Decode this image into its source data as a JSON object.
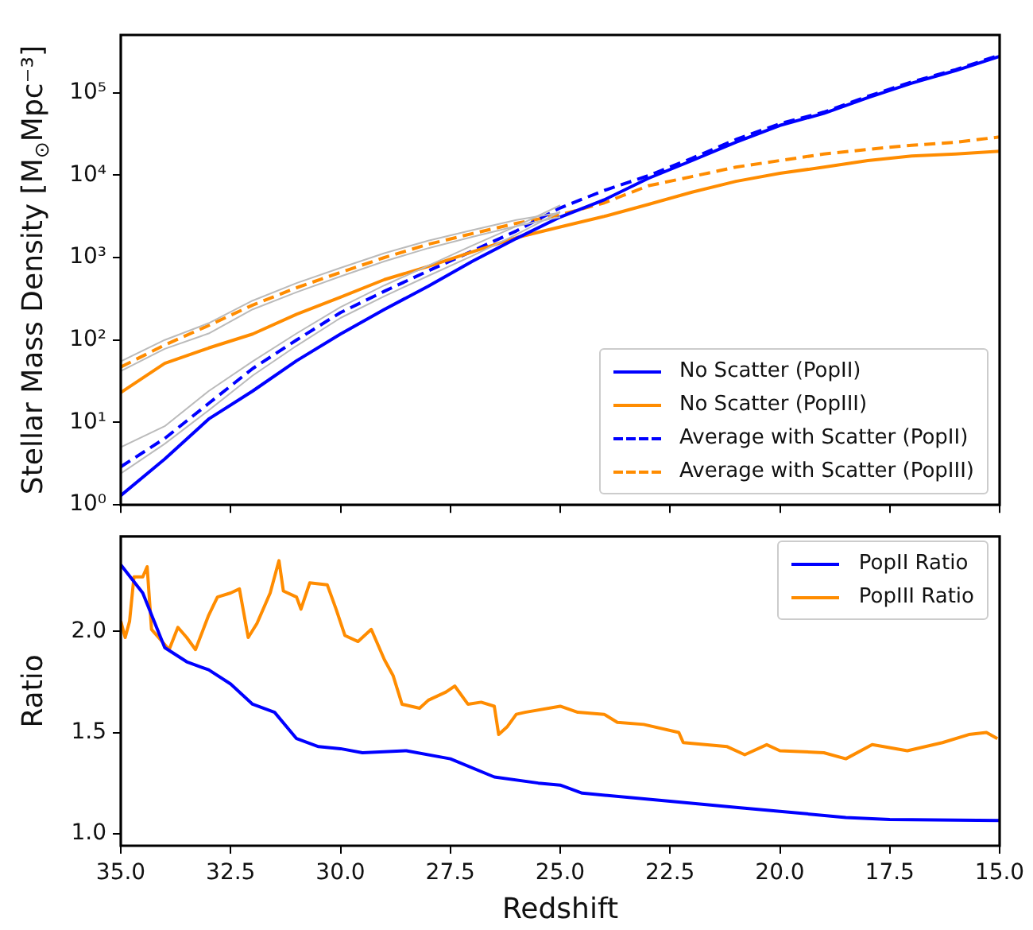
{
  "chart_data": [
    {
      "type": "line",
      "ylabel": "Stellar Mass Density [M$_{⊙}$Mpc⁻³]",
      "log": "y",
      "xlim": [
        35,
        15
      ],
      "xticks": [
        35,
        32.5,
        30,
        27.5,
        25,
        22.5,
        20,
        17.5,
        15
      ],
      "ylim": [
        1,
        500000
      ],
      "yticks": [
        {
          "value": 1,
          "label": "10⁰"
        },
        {
          "value": 10,
          "label": "10¹"
        },
        {
          "value": 100,
          "label": "10²"
        },
        {
          "value": 1000,
          "label": "10³"
        },
        {
          "value": 10000,
          "label": "10⁴"
        },
        {
          "value": 100000,
          "label": "10⁵"
        }
      ],
      "tick_labels": "y",
      "legend": "bottom right",
      "marker": "none",
      "grid": false,
      "series": [
        {
          "color": "#bbbbbb",
          "x": [
            35,
            34,
            33,
            32,
            31,
            30,
            29,
            28,
            27,
            26,
            25
          ],
          "values": [
            55,
            100,
            160,
            300,
            490,
            750,
            1130,
            1600,
            2150,
            2850,
            3500
          ]
        },
        {
          "color": "#bbbbbb",
          "x": [
            35,
            34,
            33,
            32,
            31,
            30,
            29,
            28,
            27,
            26,
            25
          ],
          "values": [
            42,
            78,
            120,
            235,
            380,
            590,
            900,
            1300,
            1780,
            2400,
            3100
          ]
        },
        {
          "color": "#bbbbbb",
          "x": [
            35,
            34,
            33,
            32,
            31,
            30,
            29,
            28,
            27,
            26,
            25
          ],
          "values": [
            5,
            9,
            24,
            55,
            120,
            250,
            460,
            800,
            1400,
            2400,
            4300
          ]
        },
        {
          "color": "#bbbbbb",
          "x": [
            35,
            34,
            33,
            32,
            31,
            30,
            29,
            28,
            27,
            26,
            25
          ],
          "values": [
            2.4,
            5.5,
            14,
            37,
            85,
            185,
            340,
            600,
            1050,
            1900,
            3600
          ]
        },
        {
          "name": "No Scatter (PopII)",
          "color": "#0000ff",
          "line_style": "solid",
          "x": [
            35,
            34,
            33,
            32,
            31,
            30,
            29,
            28,
            27,
            26,
            25,
            24,
            23,
            22,
            21,
            20,
            19,
            18,
            17,
            16,
            15
          ],
          "values": [
            1.3,
            3.6,
            11,
            24,
            56,
            118,
            235,
            450,
            900,
            1700,
            3100,
            5000,
            9100,
            15000,
            25000,
            40000,
            56000,
            87000,
            130000,
            185000,
            275000
          ]
        },
        {
          "name": "No Scatter (PopIII)",
          "color": "#ff8c00",
          "line_style": "solid",
          "x": [
            35,
            34,
            33,
            32,
            31,
            30,
            29,
            28,
            27,
            26,
            25,
            24,
            23,
            22,
            21,
            20,
            19,
            18,
            17,
            16,
            15
          ],
          "values": [
            23,
            52,
            80,
            118,
            205,
            330,
            540,
            780,
            1170,
            1740,
            2350,
            3150,
            4400,
            6200,
            8400,
            10500,
            12500,
            15000,
            17000,
            18000,
            19500
          ]
        },
        {
          "name": "Average with Scatter (PopII)",
          "color": "#0000ff",
          "line_style": "dashed",
          "x": [
            35,
            34,
            33,
            32,
            31,
            30,
            29,
            28,
            27,
            26,
            25,
            24,
            23,
            22,
            21,
            20,
            19,
            18,
            17,
            16,
            15
          ],
          "values": [
            2.9,
            6.4,
            17,
            45,
            100,
            215,
            390,
            690,
            1200,
            2100,
            4000,
            6500,
            9800,
            16000,
            27000,
            42000,
            58000,
            90000,
            135000,
            190000,
            285000
          ]
        },
        {
          "name": "Average with Scatter (PopIII)",
          "color": "#ff8c00",
          "line_style": "dashed",
          "x": [
            35,
            34,
            33,
            32,
            31,
            30,
            29,
            28,
            27,
            26,
            25,
            24,
            23,
            22,
            21,
            20,
            19,
            18,
            17,
            16,
            15
          ],
          "values": [
            47,
            87,
            150,
            265,
            430,
            660,
            1000,
            1450,
            1950,
            2600,
            3300,
            4600,
            7400,
            9600,
            12500,
            15000,
            18000,
            20500,
            23000,
            25000,
            29000
          ]
        }
      ]
    },
    {
      "type": "line",
      "xlabel": "Redshift",
      "ylabel": "Ratio",
      "xlim": [
        35,
        15
      ],
      "xticks": [
        {
          "value": 35,
          "label": "35.0"
        },
        {
          "value": 32.5,
          "label": "32.5"
        },
        {
          "value": 30,
          "label": "30.0"
        },
        {
          "value": 27.5,
          "label": "27.5"
        },
        {
          "value": 25,
          "label": "25.0"
        },
        {
          "value": 22.5,
          "label": "22.5"
        },
        {
          "value": 20,
          "label": "20.0"
        },
        {
          "value": 17.5,
          "label": "17.5"
        },
        {
          "value": 15,
          "label": "15.0"
        }
      ],
      "ylim": [
        0.94,
        2.47
      ],
      "yticks": [
        {
          "value": 1,
          "label": "1.0"
        },
        {
          "value": 1.5,
          "label": "1.5"
        },
        {
          "value": 2,
          "label": "2.0"
        }
      ],
      "legend": "top right",
      "marker": "none",
      "grid": false,
      "series": [
        {
          "name": "PopII Ratio",
          "color": "#0000ff",
          "x": [
            35,
            34.5,
            34,
            33.5,
            33,
            32.5,
            32,
            31.5,
            31,
            30.5,
            30,
            29.5,
            28.5,
            27.5,
            26.5,
            25.5,
            25,
            24.5,
            22.5,
            21,
            20,
            18.5,
            17.5,
            15
          ],
          "values": [
            2.33,
            2.19,
            1.92,
            1.85,
            1.81,
            1.74,
            1.64,
            1.6,
            1.47,
            1.43,
            1.42,
            1.4,
            1.41,
            1.37,
            1.28,
            1.25,
            1.24,
            1.2,
            1.16,
            1.13,
            1.11,
            1.08,
            1.07,
            1.065
          ]
        },
        {
          "name": "PopIII Ratio",
          "color": "#ff8c00",
          "x": [
            35,
            34.9,
            34.8,
            34.7,
            34.5,
            34.4,
            34.3,
            34.1,
            33.9,
            33.7,
            33.5,
            33.3,
            33,
            32.8,
            32.5,
            32.3,
            32.1,
            31.9,
            31.6,
            31.4,
            31.3,
            31,
            30.9,
            30.7,
            30.3,
            30.1,
            29.9,
            29.6,
            29.3,
            29,
            28.8,
            28.6,
            28.2,
            28,
            27.6,
            27.4,
            27.1,
            26.8,
            26.5,
            26.4,
            26.2,
            26,
            25.8,
            25,
            24.6,
            24,
            23.7,
            23.1,
            22.3,
            22.2,
            21.2,
            20.8,
            20.3,
            20,
            19,
            18.5,
            17.9,
            17.1,
            16.3,
            15.7,
            15.3,
            15.05
          ],
          "values": [
            2.05,
            1.97,
            2.05,
            2.27,
            2.27,
            2.32,
            2.01,
            1.96,
            1.91,
            2.02,
            1.97,
            1.91,
            2.08,
            2.17,
            2.19,
            2.21,
            1.97,
            2.04,
            2.19,
            2.35,
            2.2,
            2.17,
            2.11,
            2.24,
            2.23,
            2.11,
            1.98,
            1.95,
            2.01,
            1.86,
            1.78,
            1.64,
            1.62,
            1.66,
            1.7,
            1.73,
            1.64,
            1.65,
            1.63,
            1.49,
            1.53,
            1.59,
            1.6,
            1.63,
            1.6,
            1.59,
            1.55,
            1.54,
            1.5,
            1.45,
            1.43,
            1.39,
            1.44,
            1.41,
            1.4,
            1.37,
            1.44,
            1.41,
            1.45,
            1.49,
            1.5,
            1.47
          ]
        }
      ]
    }
  ]
}
